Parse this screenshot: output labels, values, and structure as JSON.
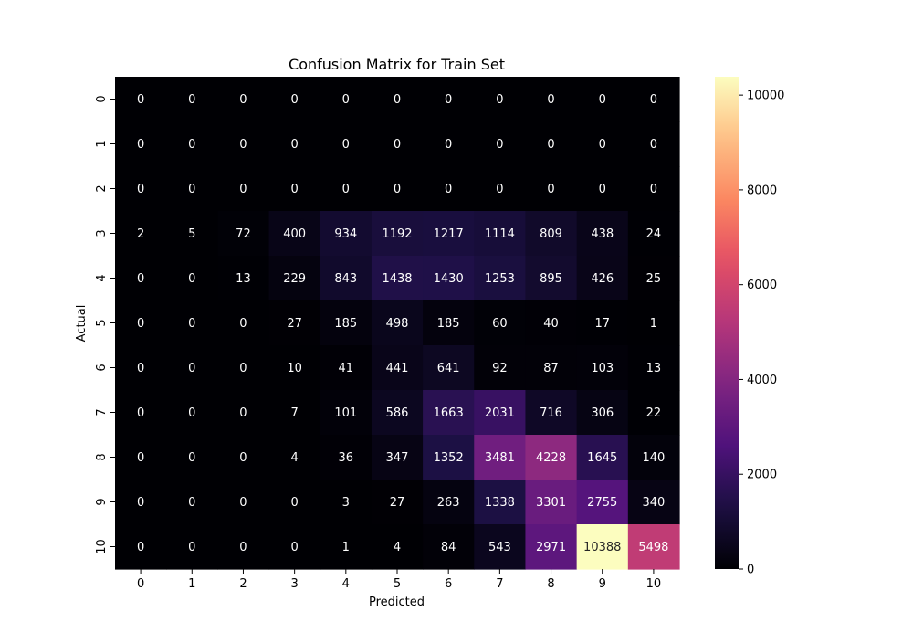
{
  "chart_data": {
    "type": "heatmap",
    "title": "Confusion Matrix for Train Set",
    "xlabel": "Predicted",
    "ylabel": "Actual",
    "x_categories": [
      "0",
      "1",
      "2",
      "3",
      "4",
      "5",
      "6",
      "7",
      "8",
      "9",
      "10"
    ],
    "y_categories": [
      "0",
      "1",
      "2",
      "3",
      "4",
      "5",
      "6",
      "7",
      "8",
      "9",
      "10"
    ],
    "values": [
      [
        0,
        0,
        0,
        0,
        0,
        0,
        0,
        0,
        0,
        0,
        0
      ],
      [
        0,
        0,
        0,
        0,
        0,
        0,
        0,
        0,
        0,
        0,
        0
      ],
      [
        0,
        0,
        0,
        0,
        0,
        0,
        0,
        0,
        0,
        0,
        0
      ],
      [
        2,
        5,
        72,
        400,
        934,
        1192,
        1217,
        1114,
        809,
        438,
        24
      ],
      [
        0,
        0,
        13,
        229,
        843,
        1438,
        1430,
        1253,
        895,
        426,
        25
      ],
      [
        0,
        0,
        0,
        27,
        185,
        498,
        185,
        60,
        40,
        17,
        1
      ],
      [
        0,
        0,
        0,
        10,
        41,
        441,
        641,
        92,
        87,
        103,
        13
      ],
      [
        0,
        0,
        0,
        7,
        101,
        586,
        1663,
        2031,
        716,
        306,
        22
      ],
      [
        0,
        0,
        0,
        4,
        36,
        347,
        1352,
        3481,
        4228,
        1645,
        140
      ],
      [
        0,
        0,
        0,
        0,
        3,
        27,
        263,
        1338,
        3301,
        2755,
        340
      ],
      [
        0,
        0,
        0,
        0,
        1,
        4,
        84,
        543,
        2971,
        10388,
        5498
      ]
    ],
    "colormap": "magma",
    "colorbar": {
      "range": [
        0,
        10388
      ],
      "ticks": [
        0,
        2000,
        4000,
        6000,
        8000,
        10000
      ]
    },
    "annotations": true
  }
}
